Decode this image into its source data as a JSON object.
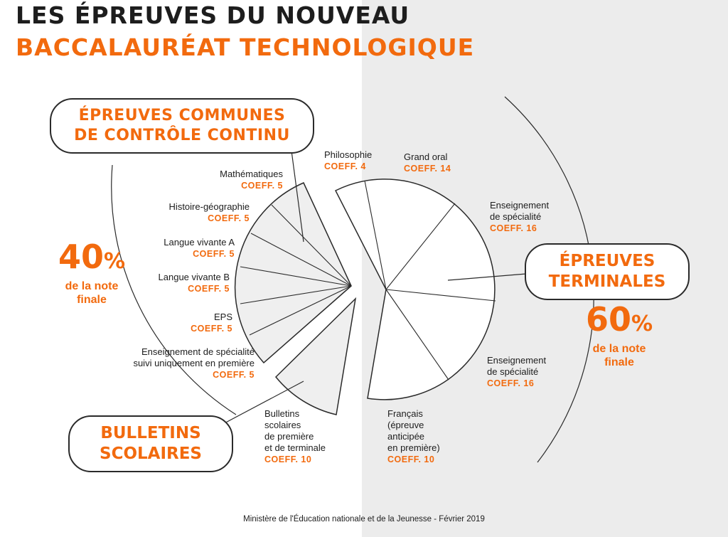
{
  "title": {
    "line1": "LES ÉPREUVES DU NOUVEAU",
    "line2": "BACCALAURÉAT TECHNOLOGIQUE"
  },
  "colors": {
    "accent": "#f26a0e",
    "dark": "#1d1d1d",
    "panel": "#ececec"
  },
  "commune": {
    "pill_line1": "ÉPREUVES COMMUNES",
    "pill_line2": "DE CONTRÔLE CONTINU",
    "percent_num": "40",
    "percent_sign": "%",
    "percent_line1": "de la note",
    "percent_line2": "finale"
  },
  "terminale": {
    "pill_line1": "ÉPREUVES",
    "pill_line2": "TERMINALES",
    "percent_num": "60",
    "percent_sign": "%",
    "percent_line1": "de la note",
    "percent_line2": "finale"
  },
  "bulletins": {
    "pill_line1": "BULLETINS",
    "pill_line2": "SCOLAIRES"
  },
  "labels": {
    "maths": {
      "name": "Mathématiques",
      "coeff": "COEFF. 5"
    },
    "histgeo": {
      "name": "Histoire-géographie",
      "coeff": "COEFF. 5"
    },
    "lva": {
      "name": "Langue vivante A",
      "coeff": "COEFF. 5"
    },
    "lvb": {
      "name": "Langue vivante B",
      "coeff": "COEFF. 5"
    },
    "eps": {
      "name": "EPS",
      "coeff": "COEFF. 5"
    },
    "specprem": {
      "line1": "Enseignement de spécialité",
      "line2": "suivi uniquement en première",
      "coeff": "COEFF. 5"
    },
    "bulletins": {
      "line1": "Bulletins",
      "line2": "scolaires",
      "line3": "de première",
      "line4": "et de terminale",
      "coeff": "COEFF. 10"
    },
    "philo": {
      "name": "Philosophie",
      "coeff": "COEFF. 4"
    },
    "oral": {
      "name": "Grand oral",
      "coeff": "COEFF. 14"
    },
    "spec1": {
      "line1": "Enseignement",
      "line2": "de spécialité",
      "coeff": "COEFF. 16"
    },
    "spec2": {
      "line1": "Enseignement",
      "line2": "de spécialité",
      "coeff": "COEFF. 16"
    },
    "francais": {
      "line1": "Français",
      "line2": "(épreuve",
      "line3": "anticipée",
      "line4": "en première)",
      "coeff": "COEFF. 10"
    }
  },
  "footer": "Ministère de l'Éducation nationale et de la Jeunesse - Février 2019"
}
